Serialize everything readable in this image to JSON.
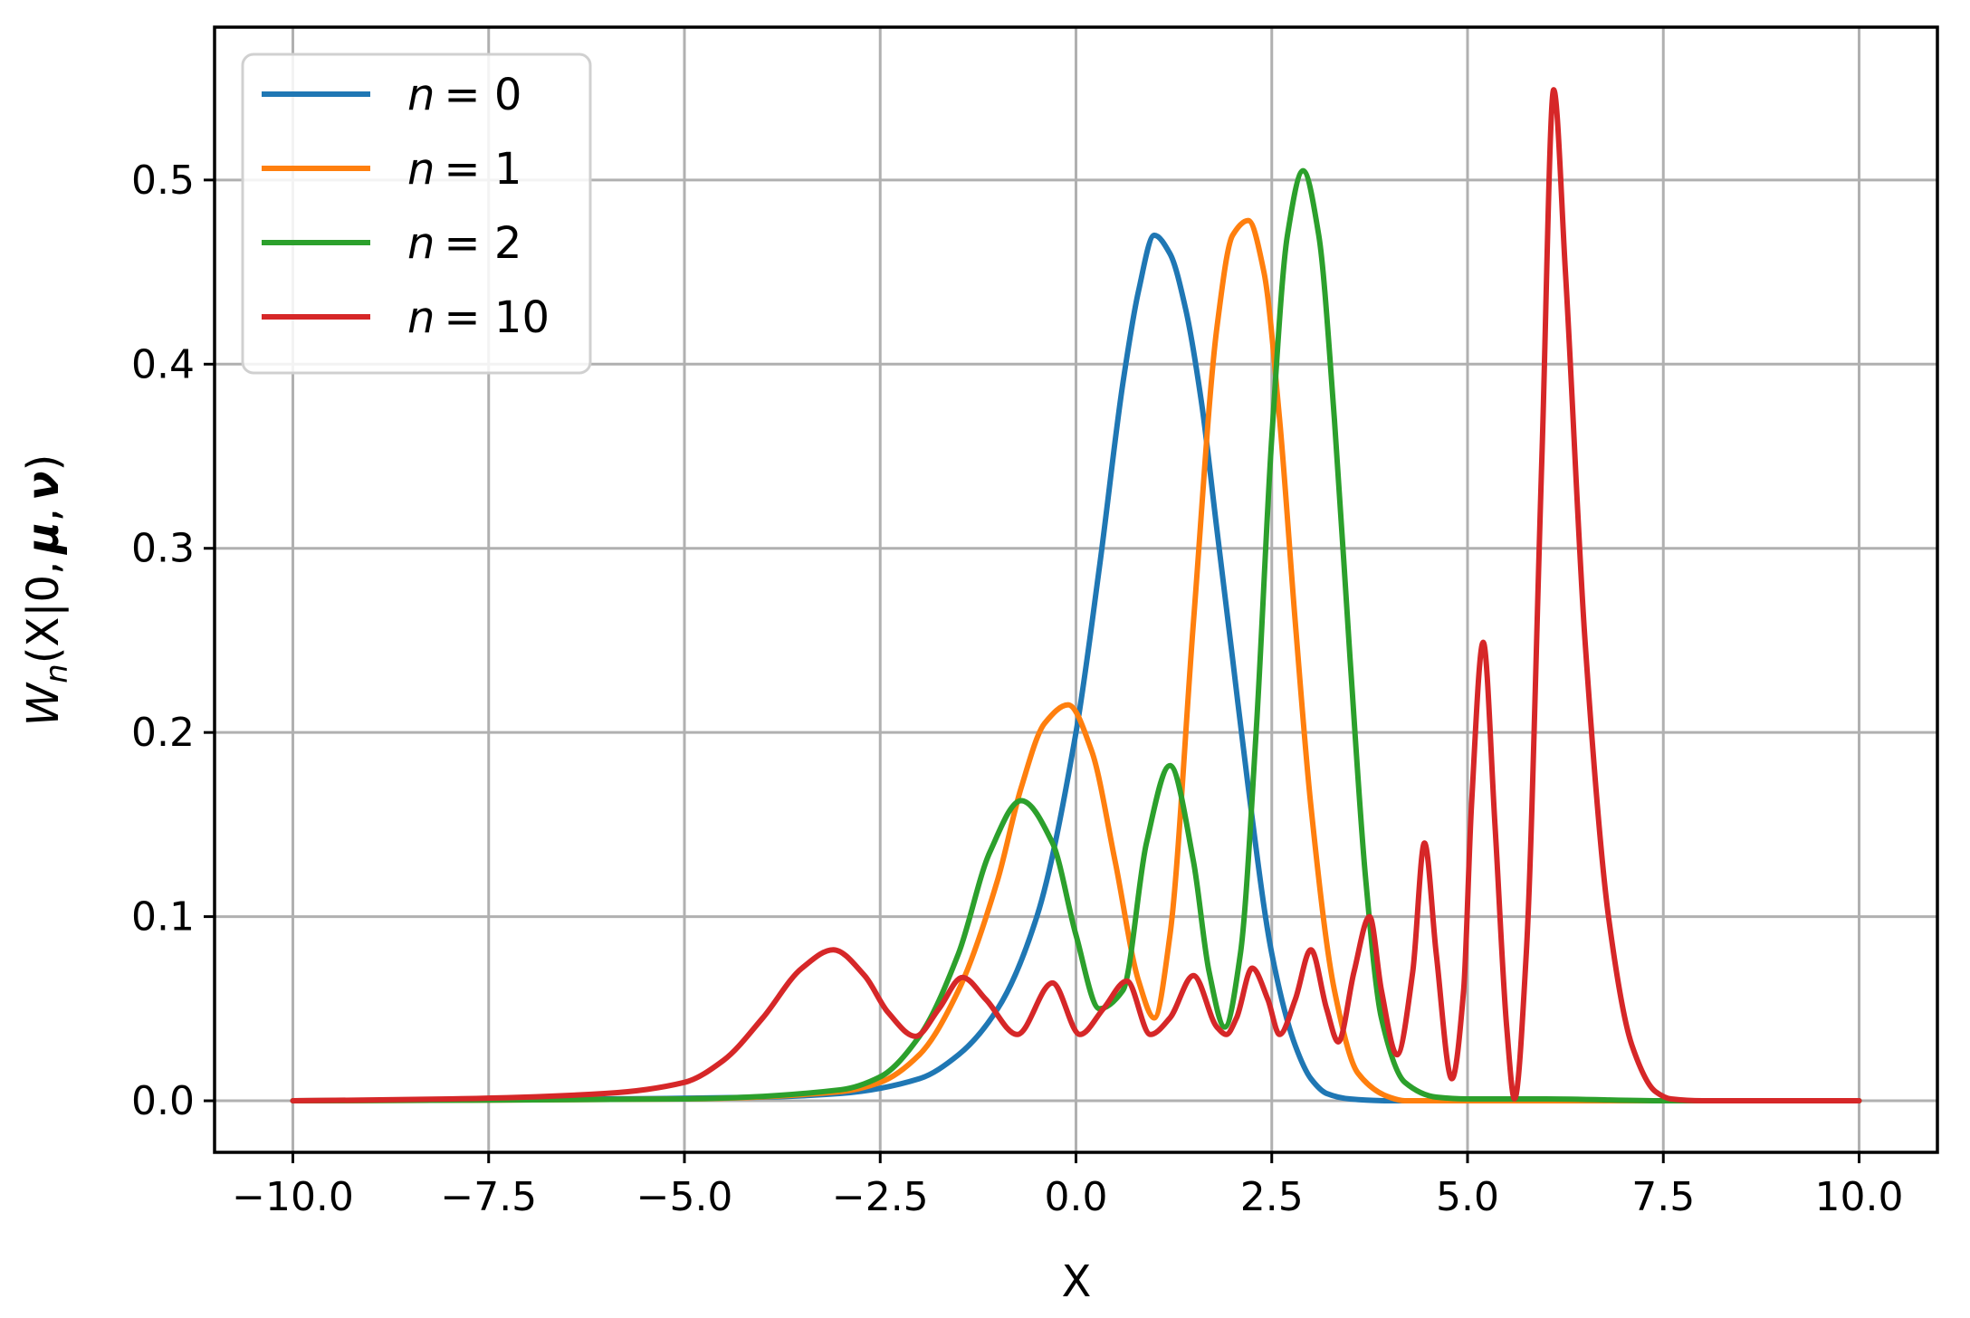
{
  "chart_data": {
    "type": "line",
    "title": "",
    "xlabel": "X",
    "ylabel": "W_n(X|0, μ, ν)",
    "ylabel_parts": {
      "W": "W",
      "n": "n",
      "rest": "(X|0,",
      "mu": "μ",
      "comma": ",",
      "nu": "ν",
      "close": ")"
    },
    "xlim": [
      -11.0,
      11.0
    ],
    "ylim": [
      -0.028,
      0.583
    ],
    "xticks": [
      -10.0,
      -7.5,
      -5.0,
      -2.5,
      0.0,
      2.5,
      5.0,
      7.5,
      10.0
    ],
    "xtick_labels": [
      "−10.0",
      "−7.5",
      "−5.0",
      "−2.5",
      "0.0",
      "2.5",
      "5.0",
      "7.5",
      "10.0"
    ],
    "yticks": [
      0.0,
      0.1,
      0.2,
      0.3,
      0.4,
      0.5
    ],
    "ytick_labels": [
      "0.0",
      "0.1",
      "0.2",
      "0.3",
      "0.4",
      "0.5"
    ],
    "grid": true,
    "legend_position": "top-left",
    "series": [
      {
        "name": "n = 0",
        "legend_var": "n",
        "legend_value": "= 0",
        "color": "#1f77b4",
        "x": [
          -10,
          -6,
          -4,
          -3,
          -2,
          -1.5,
          -1,
          -0.5,
          0,
          0.3,
          0.6,
          0.8,
          1.0,
          1.2,
          1.4,
          1.6,
          1.8,
          2.0,
          2.2,
          2.5,
          2.8,
          3.0,
          3.2,
          3.5,
          4.0,
          5.0,
          10.0
        ],
        "y": [
          0,
          0.001,
          0.002,
          0.004,
          0.012,
          0.025,
          0.05,
          0.1,
          0.2,
          0.29,
          0.39,
          0.44,
          0.47,
          0.46,
          0.43,
          0.38,
          0.31,
          0.24,
          0.17,
          0.08,
          0.03,
          0.012,
          0.004,
          0.001,
          0,
          0,
          0
        ]
      },
      {
        "name": "n = 1",
        "legend_var": "n",
        "legend_value": "= 1",
        "color": "#ff7f0e",
        "x": [
          -10,
          -5,
          -3,
          -2.5,
          -2,
          -1.5,
          -1.0,
          -0.7,
          -0.4,
          -0.1,
          0.2,
          0.5,
          0.8,
          1.0,
          1.2,
          1.5,
          1.8,
          2.0,
          2.2,
          2.4,
          2.6,
          2.8,
          3.0,
          3.3,
          3.6,
          4.0,
          4.2,
          5.0,
          10.0
        ],
        "y": [
          0,
          0.001,
          0.005,
          0.01,
          0.025,
          0.06,
          0.12,
          0.17,
          0.205,
          0.215,
          0.19,
          0.13,
          0.065,
          0.045,
          0.09,
          0.26,
          0.42,
          0.47,
          0.478,
          0.45,
          0.37,
          0.26,
          0.16,
          0.06,
          0.015,
          0.002,
          0,
          0,
          0
        ]
      },
      {
        "name": "n = 2",
        "legend_var": "n",
        "legend_value": "= 2",
        "color": "#2ca02c",
        "x": [
          -10,
          -5,
          -3,
          -2.5,
          -2,
          -1.5,
          -1.1,
          -0.7,
          -0.3,
          0.0,
          0.3,
          0.6,
          0.9,
          1.2,
          1.5,
          1.7,
          1.9,
          2.1,
          2.3,
          2.5,
          2.7,
          2.9,
          3.1,
          3.3,
          3.5,
          3.7,
          3.9,
          4.2,
          4.6,
          5.0,
          6.0,
          7.5,
          10.0
        ],
        "y": [
          0,
          0.001,
          0.006,
          0.013,
          0.035,
          0.08,
          0.135,
          0.163,
          0.14,
          0.09,
          0.05,
          0.06,
          0.14,
          0.182,
          0.13,
          0.07,
          0.04,
          0.08,
          0.2,
          0.36,
          0.47,
          0.505,
          0.47,
          0.37,
          0.24,
          0.12,
          0.045,
          0.01,
          0.002,
          0.001,
          0.001,
          0,
          0
        ]
      },
      {
        "name": "n = 10",
        "legend_var": "n",
        "legend_value": "= 10",
        "color": "#d62728",
        "x": [
          -10,
          -8,
          -6,
          -5,
          -4.5,
          -4,
          -3.5,
          -3.1,
          -2.7,
          -2.4,
          -2.05,
          -1.75,
          -1.45,
          -1.15,
          -0.75,
          -0.3,
          0.05,
          0.35,
          0.65,
          0.95,
          1.2,
          1.5,
          1.8,
          1.92,
          2.05,
          2.25,
          2.45,
          2.6,
          2.8,
          3.0,
          3.2,
          3.35,
          3.55,
          3.75,
          3.9,
          4.1,
          4.3,
          4.45,
          4.6,
          4.8,
          4.95,
          5.05,
          5.2,
          5.35,
          5.5,
          5.6,
          5.75,
          5.95,
          6.1,
          6.25,
          6.5,
          6.8,
          7.1,
          7.4,
          7.6,
          8.0,
          10.0
        ],
        "y": [
          0,
          0.001,
          0.004,
          0.01,
          0.022,
          0.045,
          0.072,
          0.082,
          0.068,
          0.048,
          0.035,
          0.05,
          0.067,
          0.055,
          0.036,
          0.064,
          0.036,
          0.05,
          0.065,
          0.036,
          0.045,
          0.068,
          0.04,
          0.036,
          0.045,
          0.072,
          0.055,
          0.036,
          0.055,
          0.082,
          0.05,
          0.032,
          0.07,
          0.1,
          0.06,
          0.025,
          0.07,
          0.14,
          0.08,
          0.012,
          0.06,
          0.16,
          0.249,
          0.15,
          0.04,
          0.001,
          0.08,
          0.35,
          0.549,
          0.45,
          0.25,
          0.1,
          0.03,
          0.005,
          0.001,
          0,
          0
        ]
      }
    ]
  }
}
